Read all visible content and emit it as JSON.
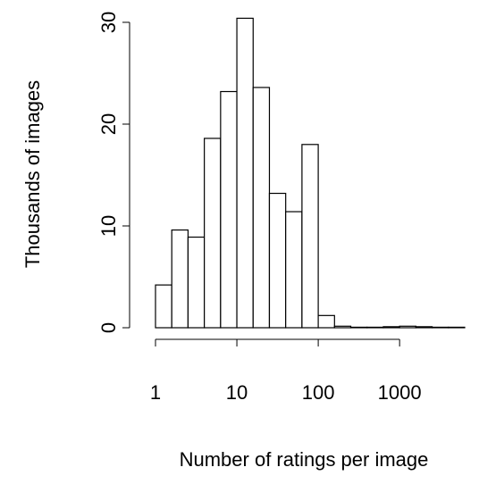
{
  "chart_data": {
    "type": "histogram",
    "xlabel": "Number of ratings per image",
    "ylabel": "Thousands of images",
    "log_x": true,
    "bins": [
      1,
      1.585,
      2.512,
      3.981,
      6.31,
      10,
      15.85,
      25.12,
      39.81,
      63.1,
      100,
      158.5,
      251.2,
      398.1,
      631,
      1000,
      1585,
      2512,
      3981,
      6310
    ],
    "values": [
      4.2,
      9.6,
      8.9,
      18.6,
      23.2,
      30.4,
      23.6,
      13.2,
      11.4,
      18.0,
      1.2,
      0.15,
      0.05,
      0.05,
      0.1,
      0.15,
      0.1,
      0.05,
      0.05
    ],
    "color": "#ffffff",
    "xlim": [
      1,
      6310
    ],
    "xticks": [
      1,
      10,
      100,
      1000
    ],
    "ylim": [
      0,
      30
    ],
    "yticks": [
      0,
      10,
      20,
      30
    ]
  }
}
